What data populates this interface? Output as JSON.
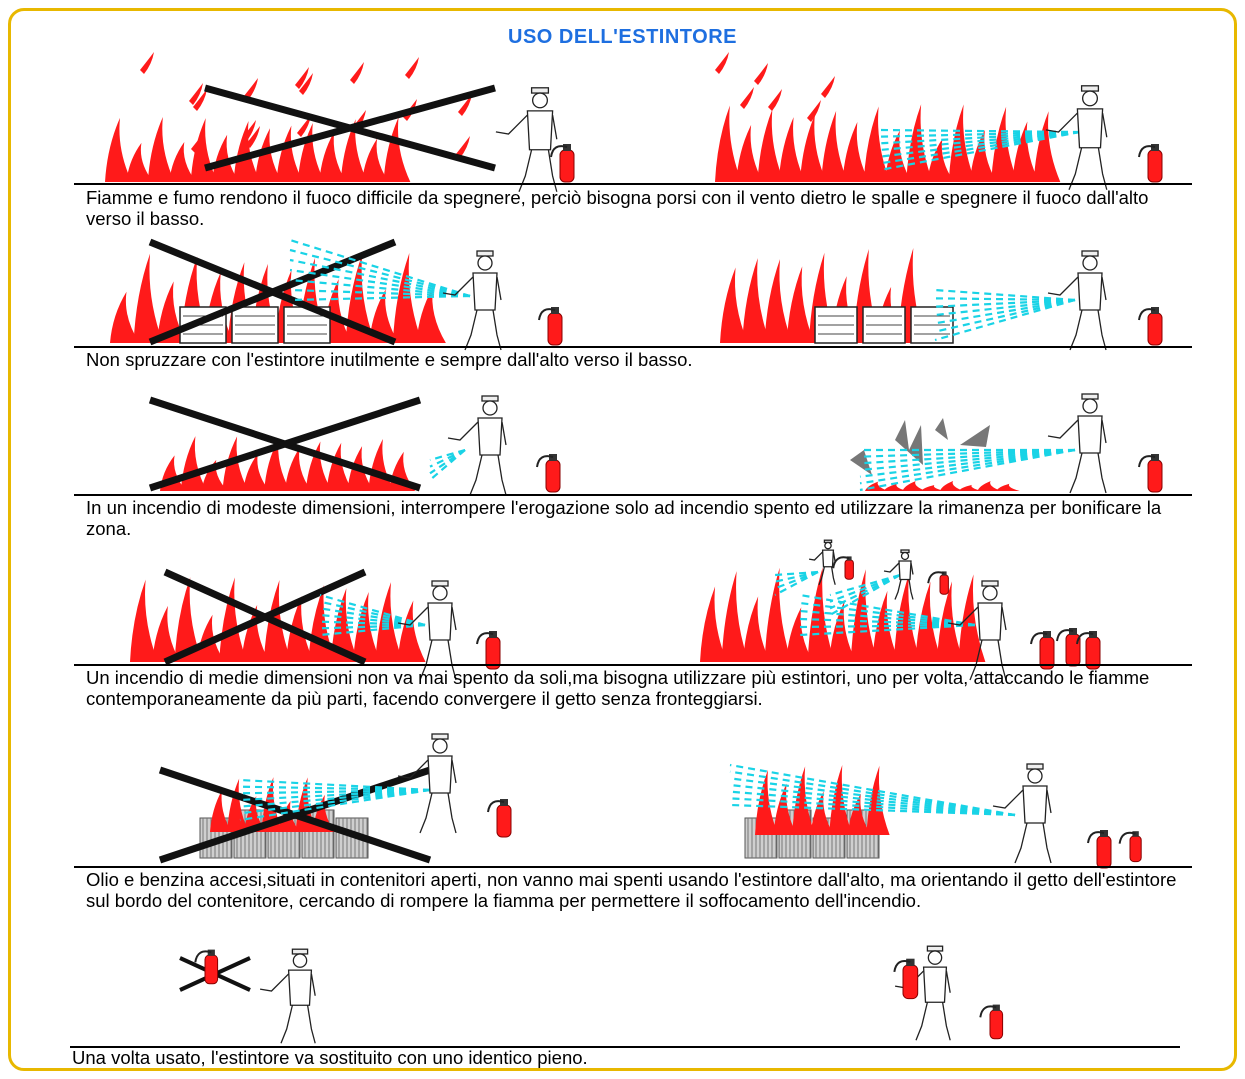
{
  "title": "USO DELL'ESTINTORE",
  "accent_color": "#1e6fe0",
  "border_color": "#e8b800",
  "flame_color": "#ff1a1a",
  "spray_color": "#19d3e6",
  "sections": [
    {
      "caption": "Fiamme e fumo rendono il fuoco difficile da spegnere, perciò bisogna porsi con il vento dietro le spalle e spegnere il fuoco dall'alto verso il basso."
    },
    {
      "caption": "Non spruzzare con l'estintore inutilmente e sempre dall'alto verso il basso."
    },
    {
      "caption": "In un incendio di modeste dimensioni, interrompere l'erogazione solo ad incendio spento ed utilizzare la rimanenza per bonificare la zona."
    },
    {
      "caption": "Un incendio di medie dimensioni non va mai spento da soli,ma bisogna utilizzare più estintori, uno per volta, attaccando le fiamme contemporaneamente da più parti, facendo convergere il getto senza fronteggiarsi."
    },
    {
      "caption": "Olio e benzina accesi,situati in contenitori aperti, non vanno mai spenti usando l'estintore dall'alto, ma orientando il getto dell'estintore sul bordo del contenitore, cercando di rompere la fiamma per permettere il soffocamento dell'incendio."
    },
    {
      "caption": "Una volta usato, l'estintore va sostituito con uno identico pieno."
    }
  ]
}
